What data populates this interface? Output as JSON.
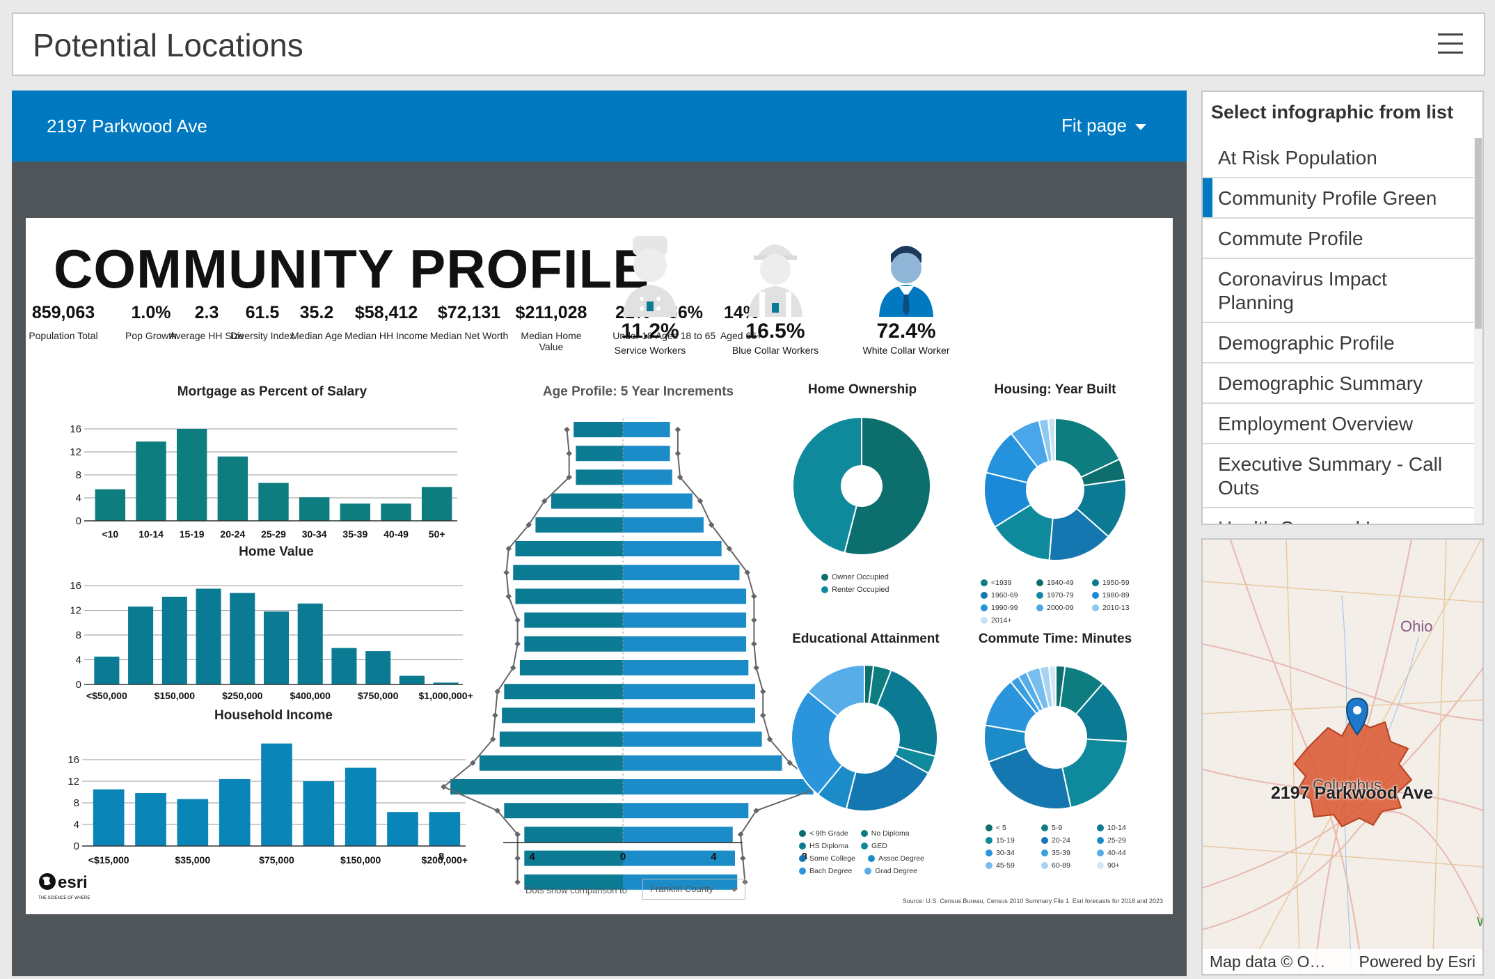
{
  "app": {
    "title": "Potential Locations"
  },
  "panel": {
    "address": "2197 Parkwood Ave",
    "fit_label": "Fit page"
  },
  "infographic": {
    "title": "COMMUNITY PROFILE",
    "stats": [
      {
        "value": "859,063",
        "label": "Population Total"
      },
      {
        "value": "1.0%",
        "label": "Pop Growth"
      },
      {
        "value": "2.3",
        "label": "Average HH Size"
      },
      {
        "value": "61.5",
        "label": "Diversity Index"
      },
      {
        "value": "35.2",
        "label": "Median Age"
      },
      {
        "value": "$58,412",
        "label": "Median HH Income"
      },
      {
        "value": "$72,131",
        "label": "Median Net Worth"
      },
      {
        "value": "$211,028",
        "label": "Median Home Value"
      },
      {
        "value": "21%",
        "label": "Under 18"
      },
      {
        "value": "66%",
        "label": "Ages 18 to 65"
      },
      {
        "value": "14%",
        "label": "Aged 66+"
      }
    ],
    "workers": [
      {
        "pct": "11.2%",
        "label": "Service Workers"
      },
      {
        "pct": "16.5%",
        "label": "Blue Collar Workers"
      },
      {
        "pct": "72.4%",
        "label": "White Collar Worker"
      }
    ],
    "dots_note": "Dots show comparison to",
    "county": "Franklin County",
    "source": "Source: U.S. Census Bureau, Census 2010 Summary File 1. Esri forecasts for 2018 and 2023",
    "esri_logo": {
      "brand": "esri",
      "tagline": "THE SCIENCE OF WHERE"
    }
  },
  "chart_data": [
    {
      "type": "bar",
      "title": "Mortgage as Percent of Salary",
      "categories": [
        "<10",
        "10-14",
        "15-19",
        "20-24",
        "25-29",
        "30-34",
        "35-39",
        "40-49",
        "50+"
      ],
      "values": [
        5.5,
        13.8,
        16,
        11.2,
        6.6,
        4.1,
        3,
        3,
        5.9
      ],
      "ylim": [
        0,
        16
      ],
      "yticks": [
        0,
        4,
        8,
        12,
        16
      ],
      "color": "#0e7d7f"
    },
    {
      "type": "bar",
      "title": "Home Value",
      "categories": [
        "<$50,000",
        "",
        "$150,000",
        "",
        "$250,000",
        "",
        "$400,000",
        "",
        "$750,000",
        "",
        "$1,000,000+"
      ],
      "values": [
        4.5,
        12.6,
        14.2,
        15.5,
        14.8,
        11.8,
        13.1,
        5.9,
        5.4,
        1.4,
        0.3
      ],
      "ylim": [
        0,
        16
      ],
      "yticks": [
        0,
        4,
        8,
        12,
        16
      ],
      "color": "#0b7a93"
    },
    {
      "type": "bar",
      "title": "Household Income",
      "categories": [
        "<$15,000",
        "",
        "$35,000",
        "",
        "$75,000",
        "",
        "$150,000",
        "",
        "$200,000+"
      ],
      "values": [
        10.5,
        9.8,
        8.7,
        12.4,
        19,
        12,
        14.5,
        6.3,
        6.3
      ],
      "ylim": [
        0,
        20
      ],
      "yticks": [
        0,
        4,
        8,
        12,
        16
      ],
      "color": "#0a85b8"
    },
    {
      "type": "bar",
      "title": "Age Profile: 5 Year Increments",
      "orientation": "horizontal-pyramid",
      "male": [
        2.2,
        2.1,
        2.1,
        3.2,
        3.9,
        4.8,
        4.9,
        4.8,
        4.4,
        4.4,
        4.6,
        5.3,
        5.4,
        5.5,
        6.4,
        7.7,
        5.3,
        4.4,
        4.4,
        4.4
      ],
      "female": [
        2.1,
        2.1,
        2.2,
        3.1,
        3.6,
        4.4,
        5.2,
        5.5,
        5.5,
        5.5,
        5.6,
        5.9,
        5.9,
        6.2,
        7.1,
        8.5,
        5.6,
        4.9,
        5.0,
        5.1
      ],
      "xticks": [
        "8",
        "4",
        "0",
        "4",
        "8"
      ],
      "colors": [
        "#0b7a93",
        "#1c8cc8"
      ]
    },
    {
      "type": "pie",
      "title": "Home Ownership",
      "labels": [
        "Owner Occupied",
        "Renter Occupied"
      ],
      "values": [
        54,
        46
      ],
      "colors": [
        "#0d6e6e",
        "#0e8a9c"
      ]
    },
    {
      "type": "pie",
      "title": "Housing: Year Built",
      "labels": [
        "<1939",
        "1940-49",
        "1950-59",
        "1960-69",
        "1970-79",
        "1980-89",
        "1990-99",
        "2000-09",
        "2010-13",
        "2014+"
      ],
      "values": [
        17,
        4.5,
        13,
        14,
        14,
        12,
        10,
        6.5,
        2,
        1.5
      ],
      "colors": [
        "#0e7d7f",
        "#0d6e6e",
        "#0b7a93",
        "#1577b0",
        "#0e8a9c",
        "#1a8ad8",
        "#2492dd",
        "#4aa6e8",
        "#8cc8f0",
        "#c6e2f6"
      ]
    },
    {
      "type": "pie",
      "title": "Educational Attainment",
      "labels": [
        "< 9th Grade",
        "No Diploma",
        "HS Diploma",
        "GED",
        "Some College",
        "Assoc Degree",
        "Bach Degree",
        "Grad Degree"
      ],
      "values": [
        2,
        4,
        23,
        4,
        21,
        7,
        25,
        14
      ],
      "colors": [
        "#0d6e6e",
        "#0e7d7f",
        "#0b7a93",
        "#0e8a9c",
        "#1577b0",
        "#1c8cc8",
        "#2a94dc",
        "#56ade8"
      ]
    },
    {
      "type": "pie",
      "title": "Commute Time: Minutes",
      "labels": [
        "< 5",
        "5-9",
        "10-14",
        "15-19",
        "20-24",
        "25-29",
        "30-34",
        "35-39",
        "40-44",
        "45-59",
        "60-89",
        "90+"
      ],
      "values": [
        2,
        9,
        14,
        20,
        22,
        8,
        11,
        2,
        2,
        3,
        2,
        1.5
      ],
      "colors": [
        "#0d6e6e",
        "#0e7d7f",
        "#0b7a93",
        "#0e8a9c",
        "#1577b0",
        "#1c8cc8",
        "#2a94dc",
        "#3a9ee0",
        "#56ade8",
        "#78bdee",
        "#a8d3f3",
        "#d2e8f8"
      ]
    }
  ],
  "sidebar": {
    "header": "Select infographic from list",
    "items": [
      {
        "label": "At Risk Population"
      },
      {
        "label": "Community Profile Green"
      },
      {
        "label": "Commute Profile"
      },
      {
        "label": "Coronavirus Impact Planning"
      },
      {
        "label": "Demographic Profile"
      },
      {
        "label": "Demographic Summary"
      },
      {
        "label": "Employment Overview"
      },
      {
        "label": "Executive Summary - Call Outs"
      },
      {
        "label": "Health Care and Insurance"
      }
    ],
    "selected_index": 1
  },
  "map": {
    "state_label": "Ohio",
    "city_label": "Columbus",
    "location_label": "2197 Parkwood Ave",
    "edge_label": "W",
    "attrib_left": "Map data © O…",
    "attrib_right": "Powered by Esri"
  }
}
